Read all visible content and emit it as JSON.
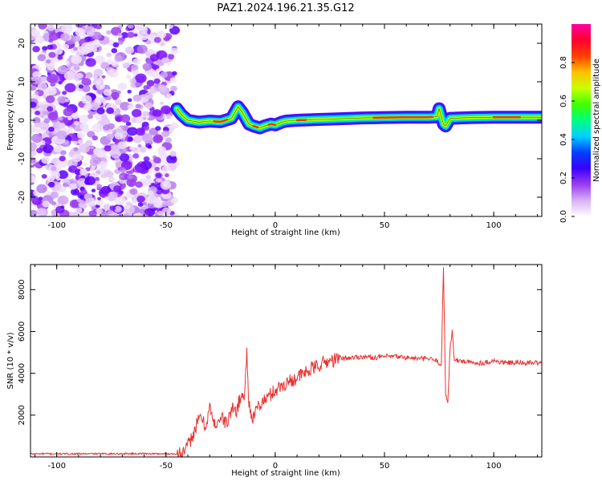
{
  "title": "PAZ1.2024.196.21.35.G12",
  "chart_data": [
    {
      "type": "heatmap",
      "xlabel": "Height of straight line (km)",
      "ylabel": "Frequency (Hz)",
      "xlim": [
        -112,
        122
      ],
      "ylim": [
        -25,
        25
      ],
      "xticks": [
        -100,
        -50,
        0,
        50,
        100
      ],
      "xtick_labels": [
        "-100",
        "-50",
        "0",
        "50",
        "100"
      ],
      "yticks": [
        -20,
        -10,
        0,
        10,
        20
      ],
      "ytick_labels": [
        "-20",
        "-10",
        "0",
        "10",
        "20"
      ],
      "ridge": {
        "description_x": [
          -45,
          -43,
          -40,
          -35,
          -30,
          -25,
          -20,
          -17,
          -15,
          -12,
          -10,
          -7,
          -5,
          -2,
          0,
          3,
          5,
          10,
          20,
          30,
          40,
          50,
          60,
          70,
          74,
          75,
          76,
          77,
          78,
          80,
          85,
          90,
          100,
          110,
          122
        ],
        "frequency_hz": [
          3,
          1.5,
          0,
          -0.5,
          -0.2,
          -0.4,
          0.5,
          3.5,
          2,
          -1,
          -1.5,
          -2,
          -1.5,
          -1,
          -1.2,
          -0.5,
          -0.2,
          0,
          0.2,
          0.4,
          0.6,
          0.7,
          0.8,
          0.8,
          0.9,
          3,
          1,
          -1,
          -1.5,
          0.5,
          0.6,
          0.7,
          0.8,
          0.8,
          0.8
        ]
      },
      "noise_x_range": [
        -112,
        -46
      ]
    },
    {
      "type": "line",
      "xlabel": "Height of straight line (km)",
      "ylabel": "SNR (10 * v/v)",
      "xlim": [
        -112,
        122
      ],
      "ylim": [
        0,
        9200
      ],
      "xticks": [
        -100,
        -50,
        0,
        50,
        100
      ],
      "xtick_labels": [
        "-100",
        "-50",
        "0",
        "50",
        "100"
      ],
      "yticks": [
        2000,
        4000,
        6000,
        8000
      ],
      "ytick_labels": [
        "2000",
        "4000",
        "6000",
        "8000"
      ],
      "line_color": "#e83232",
      "x": [
        -112,
        -100,
        -80,
        -60,
        -50,
        -45,
        -42,
        -40,
        -38,
        -36,
        -34,
        -32,
        -30,
        -28,
        -25,
        -22,
        -20,
        -18,
        -16,
        -14,
        -13,
        -12,
        -10,
        -8,
        -5,
        -2,
        0,
        3,
        6,
        10,
        15,
        20,
        25,
        30,
        35,
        40,
        45,
        50,
        55,
        60,
        65,
        70,
        74,
        76,
        77,
        78,
        79,
        80,
        81,
        82,
        85,
        90,
        95,
        100,
        105,
        110,
        115,
        122
      ],
      "y": [
        150,
        150,
        150,
        160,
        150,
        150,
        200,
        500,
        1000,
        1500,
        2000,
        1400,
        2400,
        1500,
        1900,
        1600,
        2300,
        2200,
        2800,
        3000,
        5000,
        2500,
        1800,
        2400,
        2700,
        3000,
        3200,
        3400,
        3600,
        3800,
        4100,
        4400,
        4600,
        4700,
        4750,
        4800,
        4750,
        4800,
        4800,
        4750,
        4700,
        4700,
        4600,
        4400,
        9000,
        3000,
        2600,
        5200,
        6000,
        4600,
        4600,
        4500,
        4500,
        4600,
        4500,
        4500,
        4500,
        4500
      ]
    }
  ],
  "colorbar": {
    "label": "Normalized spectral amplitude",
    "ticks": [
      0.0,
      0.2,
      0.4,
      0.6,
      0.8
    ],
    "tick_labels": [
      "0.0",
      "0.2",
      "0.4",
      "0.6",
      "0.8"
    ],
    "range": [
      0,
      1
    ],
    "colors": [
      "#ffffff",
      "#d8b0f4",
      "#9a3cf0",
      "#3a00ff",
      "#0040ff",
      "#00d0ff",
      "#00ff80",
      "#40ff00",
      "#c8ff00",
      "#ffc000",
      "#ff4000",
      "#ff0030",
      "#ff00a0"
    ]
  }
}
